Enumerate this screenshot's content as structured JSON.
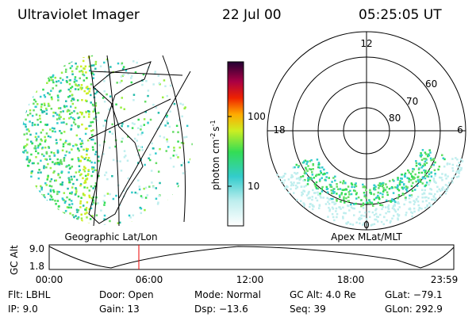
{
  "header": {
    "title": "Ultraviolet Imager",
    "date": "22 Jul 00",
    "time": "05:25:05 UT"
  },
  "colorbar": {
    "label": {
      "unit1": "photon cm",
      "exp1": "-2",
      "unit2": "s",
      "exp2": "-1"
    },
    "ticks": [
      "100",
      "10"
    ]
  },
  "polar": {
    "mlt_labels": [
      "12",
      "18",
      "6",
      "0"
    ],
    "mlat_labels": [
      "60",
      "70",
      "80"
    ]
  },
  "captions": [
    "Geographic Lat/Lon",
    "Apex MLat/MLT"
  ],
  "timeline": {
    "axis_label": "GC Alt",
    "y_labels": [
      "9.0",
      "1.8"
    ],
    "x_labels": [
      "00:00",
      "06:00",
      "12:00",
      "18:00",
      "23:59"
    ]
  },
  "status": [
    [
      "Flt: LBHL",
      "IP: 9.0"
    ],
    [
      "Door: Open",
      "Gain: 13"
    ],
    [
      "Mode: Normal",
      "Dsp: −13.6"
    ],
    [
      "GC Alt: 4.0 Re",
      "Seq: 39"
    ],
    [
      "GLat: −79.1",
      "GLon: 292.9"
    ]
  ]
}
